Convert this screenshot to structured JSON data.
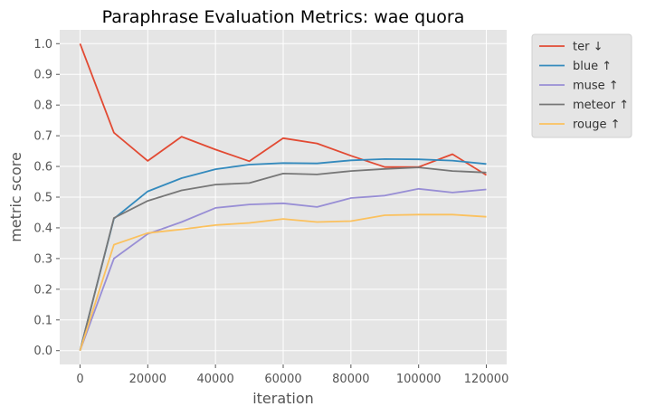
{
  "chart_data": {
    "type": "line",
    "title": "Paraphrase Evaluation Metrics: wae quora",
    "xlabel": "iteration",
    "ylabel": "metric score",
    "x": [
      0,
      10000,
      20000,
      30000,
      40000,
      50000,
      60000,
      70000,
      80000,
      90000,
      100000,
      110000,
      120000
    ],
    "xlim": [
      -6000,
      126000
    ],
    "ylim": [
      -0.045,
      1.045
    ],
    "xticks": [
      0,
      20000,
      40000,
      60000,
      80000,
      100000,
      120000
    ],
    "yticks": [
      0.0,
      0.1,
      0.2,
      0.3,
      0.4,
      0.5,
      0.6,
      0.7,
      0.8,
      0.9,
      1.0
    ],
    "grid": true,
    "legend_position": "outside-top-right",
    "series": [
      {
        "name": "ter ↓",
        "color": "#E24A33",
        "values": [
          1.0,
          0.71,
          0.618,
          0.697,
          0.655,
          0.617,
          0.692,
          0.675,
          0.635,
          0.598,
          0.598,
          0.64,
          0.572
        ]
      },
      {
        "name": "blue ↑",
        "color": "#348ABD",
        "values": [
          0.0,
          0.43,
          0.519,
          0.562,
          0.591,
          0.606,
          0.611,
          0.61,
          0.62,
          0.624,
          0.623,
          0.619,
          0.608
        ]
      },
      {
        "name": "muse ↑",
        "color": "#988ED5",
        "values": [
          0.0,
          0.3,
          0.38,
          0.419,
          0.465,
          0.476,
          0.48,
          0.468,
          0.497,
          0.505,
          0.527,
          0.515,
          0.525
        ]
      },
      {
        "name": "meteor ↑",
        "color": "#777777",
        "values": [
          0.0,
          0.432,
          0.488,
          0.522,
          0.541,
          0.546,
          0.577,
          0.574,
          0.585,
          0.592,
          0.597,
          0.585,
          0.58
        ]
      },
      {
        "name": "rouge ↑",
        "color": "#FBC15E",
        "values": [
          0.0,
          0.345,
          0.383,
          0.395,
          0.409,
          0.416,
          0.429,
          0.419,
          0.422,
          0.441,
          0.443,
          0.443,
          0.436
        ]
      }
    ]
  }
}
